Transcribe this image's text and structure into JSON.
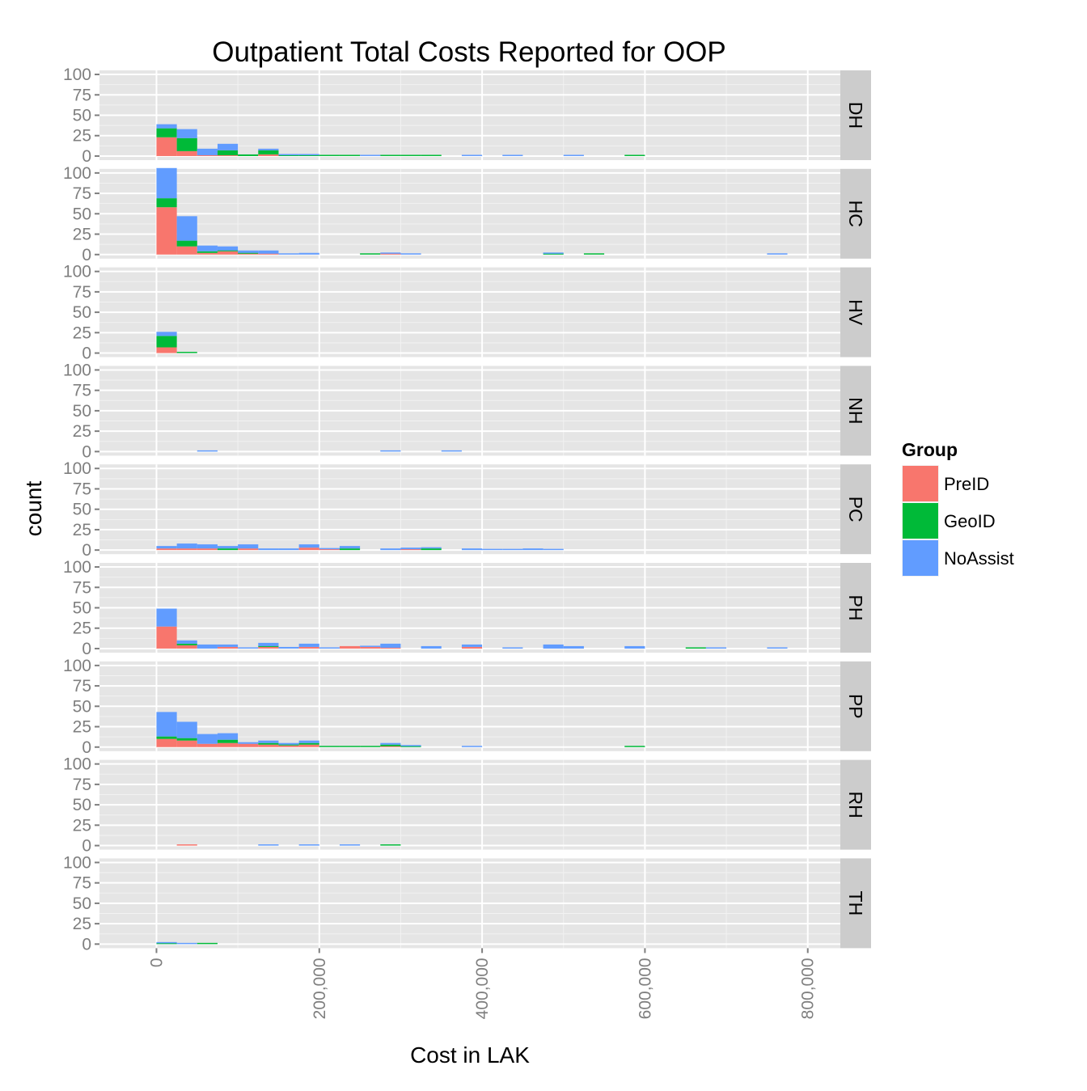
{
  "chart_data": {
    "type": "bar",
    "stacked": true,
    "title": "Outpatient Total Costs Reported for OOP",
    "xlabel": "Cost in LAK",
    "ylabel": "count",
    "xlim": [
      -70000,
      840000
    ],
    "ylim": [
      -5,
      105
    ],
    "x_ticks": [
      0,
      200000,
      400000,
      600000,
      800000
    ],
    "x_tick_labels": [
      "0",
      "200,000",
      "400,000",
      "600,000",
      "800,000"
    ],
    "y_ticks": [
      0,
      25,
      50,
      75,
      100
    ],
    "y_tick_labels": [
      "0",
      "25",
      "50",
      "75",
      "100"
    ],
    "bin_width": 25000,
    "bar_value_format": "[bin start (LAK), PreID, GeoID, NoAssist]",
    "legend": {
      "title": "Group",
      "position": "right",
      "entries": [
        {
          "name": "PreID",
          "color": "#F8766D"
        },
        {
          "name": "GeoID",
          "color": "#00BA38"
        },
        {
          "name": "NoAssist",
          "color": "#619CFF"
        }
      ]
    },
    "panels": [
      {
        "name": "DH",
        "bars": [
          [
            0,
            23,
            11,
            5
          ],
          [
            25000,
            6,
            16,
            11
          ],
          [
            50000,
            1,
            0,
            8
          ],
          [
            75000,
            1,
            6,
            8
          ],
          [
            100000,
            0,
            2,
            0
          ],
          [
            125000,
            2,
            5,
            2
          ],
          [
            150000,
            0,
            1,
            1
          ],
          [
            175000,
            0,
            1,
            1
          ],
          [
            200000,
            0,
            1,
            0
          ],
          [
            225000,
            0,
            1,
            0
          ],
          [
            250000,
            0,
            0,
            1
          ],
          [
            275000,
            0,
            1,
            0
          ],
          [
            300000,
            0,
            1,
            0
          ],
          [
            325000,
            0,
            1,
            0
          ],
          [
            375000,
            0,
            0,
            1
          ],
          [
            425000,
            0,
            0,
            1
          ],
          [
            500000,
            0,
            0,
            1
          ],
          [
            575000,
            0,
            1,
            0
          ]
        ]
      },
      {
        "name": "HC",
        "bars": [
          [
            0,
            58,
            11,
            37
          ],
          [
            25000,
            10,
            7,
            30
          ],
          [
            50000,
            2,
            2,
            7
          ],
          [
            75000,
            4,
            1,
            5
          ],
          [
            100000,
            1,
            1,
            3
          ],
          [
            125000,
            1,
            0,
            4
          ],
          [
            150000,
            0,
            0,
            1
          ],
          [
            175000,
            0,
            0,
            2
          ],
          [
            250000,
            0,
            1,
            0
          ],
          [
            275000,
            1,
            0,
            1
          ],
          [
            300000,
            0,
            0,
            1
          ],
          [
            475000,
            0,
            1,
            1
          ],
          [
            525000,
            0,
            1,
            0
          ],
          [
            750000,
            0,
            0,
            1
          ]
        ]
      },
      {
        "name": "HV",
        "bars": [
          [
            0,
            7,
            14,
            5
          ],
          [
            25000,
            0,
            1,
            0
          ]
        ]
      },
      {
        "name": "NH",
        "bars": [
          [
            50000,
            0,
            0,
            1
          ],
          [
            275000,
            0,
            0,
            1
          ],
          [
            350000,
            0,
            0,
            1
          ]
        ]
      },
      {
        "name": "PC",
        "bars": [
          [
            0,
            2,
            0,
            3
          ],
          [
            25000,
            2,
            0,
            6
          ],
          [
            50000,
            2,
            0,
            5
          ],
          [
            75000,
            0,
            2,
            3
          ],
          [
            100000,
            2,
            0,
            5
          ],
          [
            125000,
            0,
            0,
            2
          ],
          [
            150000,
            0,
            0,
            2
          ],
          [
            175000,
            3,
            0,
            4
          ],
          [
            200000,
            1,
            0,
            1
          ],
          [
            225000,
            0,
            2,
            3
          ],
          [
            275000,
            0,
            0,
            2
          ],
          [
            300000,
            1,
            0,
            2
          ],
          [
            325000,
            0,
            2,
            1
          ],
          [
            375000,
            0,
            0,
            2
          ],
          [
            400000,
            0,
            0,
            1
          ],
          [
            425000,
            0,
            0,
            1
          ],
          [
            450000,
            0,
            0,
            2
          ],
          [
            475000,
            0,
            0,
            1
          ]
        ]
      },
      {
        "name": "PH",
        "bars": [
          [
            0,
            27,
            0,
            22
          ],
          [
            25000,
            4,
            2,
            4
          ],
          [
            50000,
            0,
            0,
            5
          ],
          [
            75000,
            2,
            0,
            3
          ],
          [
            100000,
            0,
            0,
            1
          ],
          [
            125000,
            2,
            1,
            4
          ],
          [
            150000,
            0,
            0,
            2
          ],
          [
            175000,
            2,
            0,
            4
          ],
          [
            200000,
            0,
            0,
            1
          ],
          [
            225000,
            3,
            0,
            0
          ],
          [
            250000,
            2,
            0,
            1
          ],
          [
            275000,
            1,
            0,
            5
          ],
          [
            325000,
            0,
            0,
            3
          ],
          [
            375000,
            2,
            0,
            3
          ],
          [
            425000,
            0,
            0,
            1
          ],
          [
            475000,
            0,
            0,
            5
          ],
          [
            500000,
            0,
            0,
            3
          ],
          [
            575000,
            0,
            0,
            3
          ],
          [
            650000,
            0,
            1,
            0
          ],
          [
            675000,
            0,
            0,
            1
          ],
          [
            750000,
            0,
            0,
            1
          ]
        ]
      },
      {
        "name": "PP",
        "bars": [
          [
            0,
            10,
            3,
            30
          ],
          [
            25000,
            8,
            3,
            20
          ],
          [
            50000,
            4,
            0,
            12
          ],
          [
            75000,
            5,
            4,
            8
          ],
          [
            100000,
            4,
            0,
            2
          ],
          [
            125000,
            3,
            2,
            3
          ],
          [
            150000,
            2,
            1,
            2
          ],
          [
            175000,
            3,
            2,
            3
          ],
          [
            200000,
            0,
            1,
            0
          ],
          [
            225000,
            0,
            1,
            0
          ],
          [
            250000,
            0,
            1,
            0
          ],
          [
            275000,
            1,
            2,
            2
          ],
          [
            300000,
            0,
            1,
            1
          ],
          [
            375000,
            0,
            0,
            1
          ],
          [
            575000,
            0,
            1,
            0
          ]
        ]
      },
      {
        "name": "RH",
        "bars": [
          [
            25000,
            1,
            0,
            0
          ],
          [
            125000,
            0,
            0,
            1
          ],
          [
            175000,
            0,
            0,
            1
          ],
          [
            225000,
            0,
            0,
            1
          ],
          [
            275000,
            0,
            1,
            0
          ]
        ]
      },
      {
        "name": "TH",
        "bars": [
          [
            0,
            0,
            1,
            1
          ],
          [
            25000,
            0,
            0,
            1
          ],
          [
            50000,
            0,
            1,
            0
          ]
        ]
      }
    ]
  }
}
